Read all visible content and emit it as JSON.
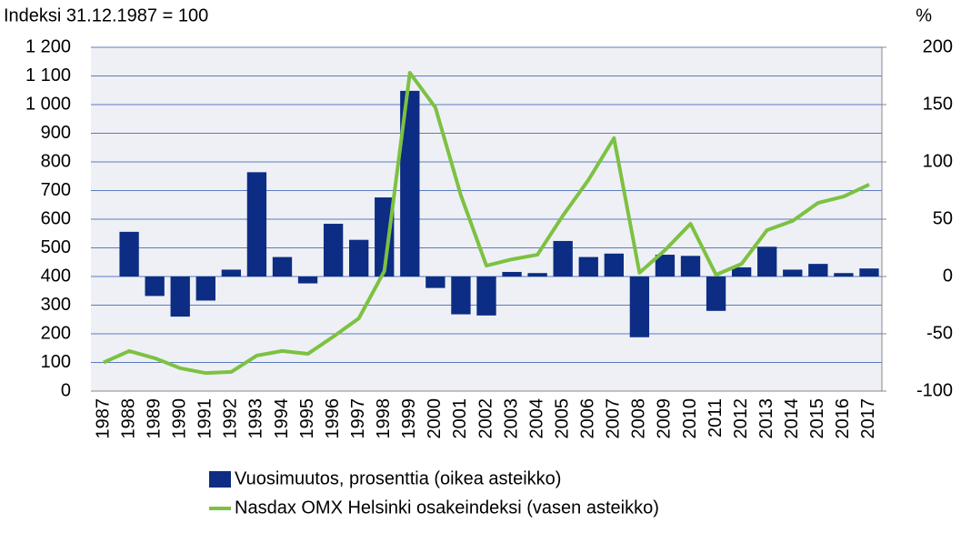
{
  "chart_data": {
    "type": "combo",
    "y_label": "Indeksi 31.12.1987 = 100",
    "y2_label": "%",
    "categories": [
      "1987",
      "1988",
      "1989",
      "1990",
      "1991",
      "1992",
      "1993",
      "1994",
      "1995",
      "1996",
      "1997",
      "1998",
      "1999",
      "2000",
      "2001",
      "2002",
      "2003",
      "2004",
      "2005",
      "2006",
      "2007",
      "2008",
      "2009",
      "2010",
      "2011",
      "2012",
      "2013",
      "2014",
      "2015",
      "2016",
      "2017"
    ],
    "series": [
      {
        "name": "Vuosimuutos, prosenttia (oikea asteikko)",
        "type": "bar",
        "axis": "y2",
        "color": "#0c2d83",
        "values": [
          null,
          39,
          -17,
          -35,
          -21,
          6,
          91,
          17,
          -6,
          46,
          32,
          69,
          162,
          -10,
          -33,
          -34,
          4,
          3,
          31,
          17,
          20,
          -53,
          19,
          18,
          -30,
          8,
          26,
          6,
          11,
          3,
          7
        ]
      },
      {
        "name": "Nasdax OMX Helsinki osakeindeksi (vasen asteikko)",
        "type": "line",
        "axis": "y",
        "color": "#7dc142",
        "values": [
          100,
          140,
          115,
          80,
          63,
          67,
          124,
          140,
          130,
          190,
          254,
          419,
          1111,
          990,
          683,
          438,
          460,
          476,
          613,
          737,
          883,
          413,
          492,
          584,
          406,
          444,
          562,
          594,
          657,
          679,
          721
        ]
      }
    ],
    "ylim": [
      0,
      1200
    ],
    "yticks": [
      0,
      100,
      200,
      300,
      400,
      500,
      600,
      700,
      800,
      900,
      {
        "value": 1000,
        "label": "1 000"
      },
      {
        "value": 1100,
        "label": "1 100"
      },
      {
        "value": 1200,
        "label": "1 200"
      }
    ],
    "y2lim": [
      -100,
      200
    ],
    "y2ticks": [
      -100,
      -50,
      0,
      50,
      100,
      150,
      200
    ],
    "grid": true
  }
}
